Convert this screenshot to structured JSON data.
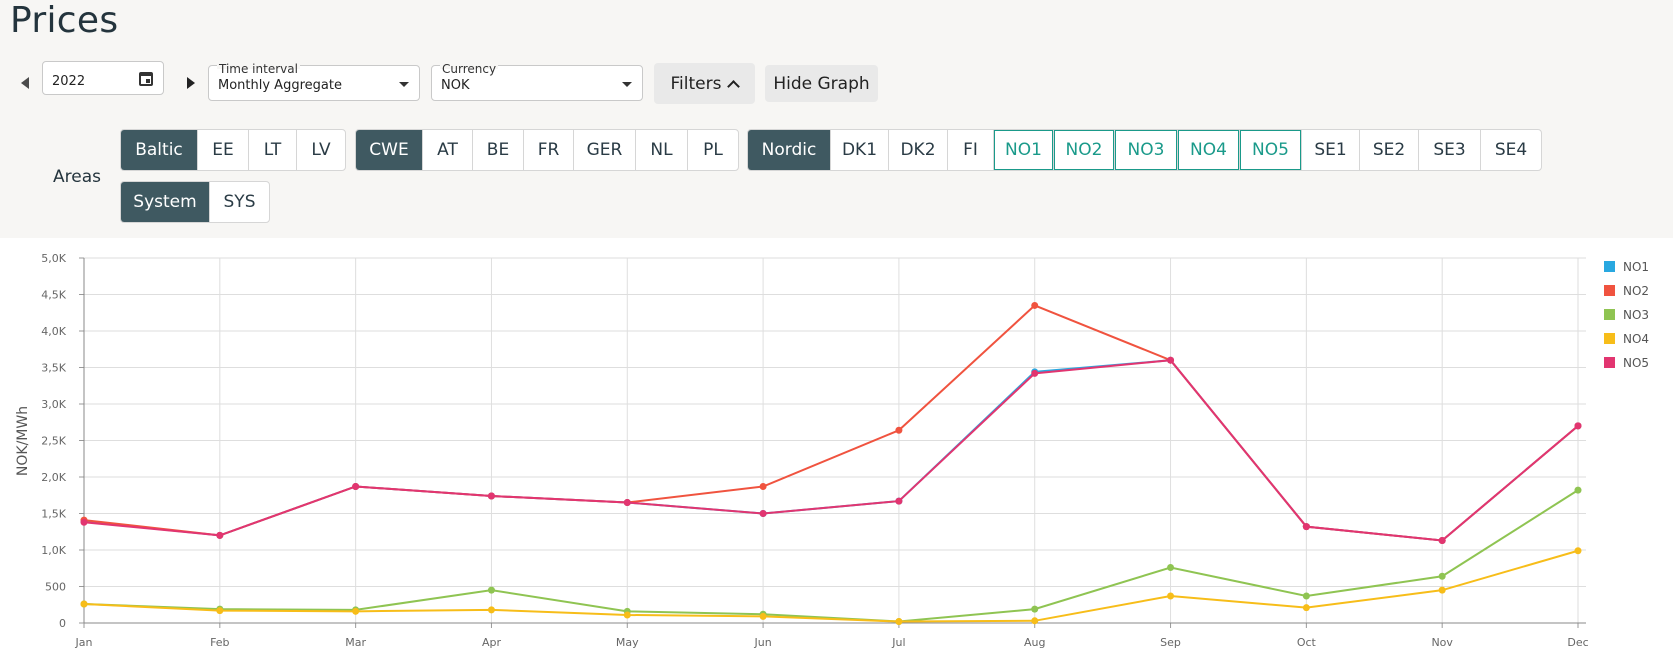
{
  "page": {
    "title": "Prices"
  },
  "controls": {
    "year": "2022",
    "time_interval": {
      "label": "Time interval",
      "value": "Monthly Aggregate"
    },
    "currency": {
      "label": "Currency",
      "value": "NOK"
    },
    "filters_label": "Filters",
    "hide_graph_label": "Hide Graph"
  },
  "areas": {
    "label": "Areas",
    "groups": [
      {
        "name": "baltic",
        "items": [
          {
            "label": "Baltic",
            "state": "dark"
          },
          {
            "label": "EE",
            "state": ""
          },
          {
            "label": "LT",
            "state": ""
          },
          {
            "label": "LV",
            "state": ""
          }
        ]
      },
      {
        "name": "cwe",
        "items": [
          {
            "label": "CWE",
            "state": "dark"
          },
          {
            "label": "AT",
            "state": ""
          },
          {
            "label": "BE",
            "state": ""
          },
          {
            "label": "FR",
            "state": ""
          },
          {
            "label": "GER",
            "state": ""
          },
          {
            "label": "NL",
            "state": ""
          },
          {
            "label": "PL",
            "state": ""
          }
        ]
      },
      {
        "name": "nordic",
        "items": [
          {
            "label": "Nordic",
            "state": "dark"
          },
          {
            "label": "DK1",
            "state": ""
          },
          {
            "label": "DK2",
            "state": ""
          },
          {
            "label": "FI",
            "state": ""
          },
          {
            "label": "NO1",
            "state": "teal"
          },
          {
            "label": "NO2",
            "state": "teal"
          },
          {
            "label": "NO3",
            "state": "teal"
          },
          {
            "label": "NO4",
            "state": "teal"
          },
          {
            "label": "NO5",
            "state": "teal"
          },
          {
            "label": "SE1",
            "state": ""
          },
          {
            "label": "SE2",
            "state": ""
          },
          {
            "label": "SE3",
            "state": ""
          },
          {
            "label": "SE4",
            "state": ""
          }
        ]
      },
      {
        "name": "system",
        "items": [
          {
            "label": "System",
            "state": "dark"
          },
          {
            "label": "SYS",
            "state": ""
          }
        ]
      }
    ]
  },
  "chart_data": {
    "type": "line",
    "ylabel": "NOK/MWh",
    "xlabel": "",
    "ylim": [
      0,
      5000
    ],
    "yticks": [
      0,
      500,
      1000,
      1500,
      2000,
      2500,
      3000,
      3500,
      4000,
      4500,
      5000
    ],
    "ytick_labels": [
      "0",
      "500",
      "1,0K",
      "1,5K",
      "2,0K",
      "2,5K",
      "3,0K",
      "3,5K",
      "4,0K",
      "4,5K",
      "5,0K"
    ],
    "categories": [
      "Jan",
      "Feb",
      "Mar",
      "Apr",
      "May",
      "Jun",
      "Jul",
      "Aug",
      "Sep",
      "Oct",
      "Nov",
      "Dec"
    ],
    "grid": true,
    "legend_position": "right",
    "series": [
      {
        "name": "NO1",
        "color": "#29a8e0",
        "values": [
          1390,
          1200,
          1870,
          1740,
          1650,
          1500,
          1670,
          3440,
          3600,
          1320,
          1130,
          2700
        ]
      },
      {
        "name": "NO2",
        "color": "#f0533f",
        "values": [
          1410,
          1200,
          1870,
          1740,
          1650,
          1870,
          2640,
          4350,
          3600,
          1320,
          1130,
          2700
        ]
      },
      {
        "name": "NO3",
        "color": "#8fc452",
        "values": [
          260,
          190,
          180,
          450,
          160,
          120,
          20,
          190,
          760,
          370,
          640,
          1820
        ]
      },
      {
        "name": "NO4",
        "color": "#f7bd19",
        "values": [
          260,
          170,
          160,
          180,
          110,
          90,
          20,
          30,
          370,
          210,
          450,
          990
        ]
      },
      {
        "name": "NO5",
        "color": "#e23570",
        "values": [
          1380,
          1200,
          1870,
          1740,
          1650,
          1500,
          1670,
          3420,
          3600,
          1320,
          1130,
          2700
        ]
      }
    ]
  }
}
